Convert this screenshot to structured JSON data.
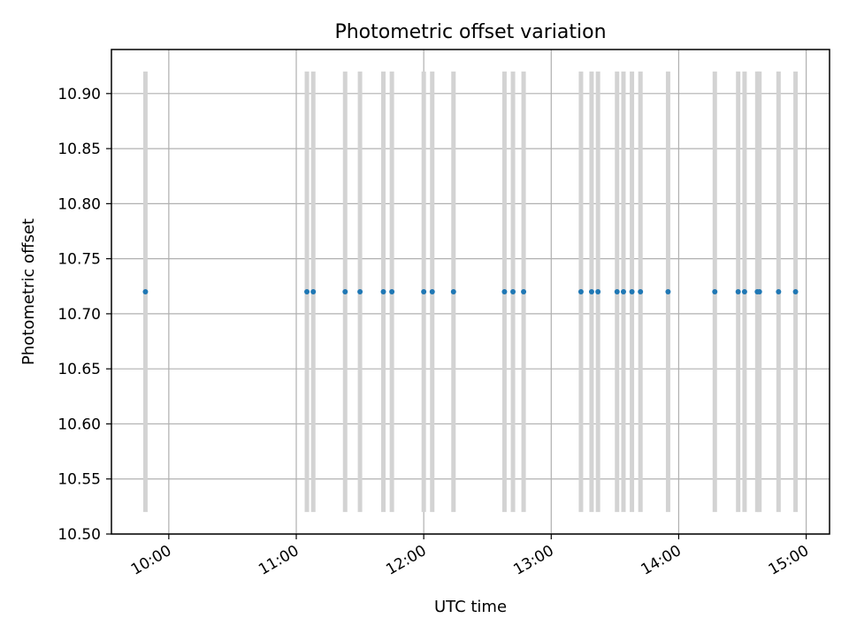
{
  "chart_data": {
    "type": "scatter",
    "title": "Photometric offset variation",
    "xlabel": "UTC time",
    "ylabel": "Photometric offset",
    "x_tick_labels": [
      "10:00",
      "11:00",
      "12:00",
      "13:00",
      "14:00",
      "15:00"
    ],
    "y_tick_labels": [
      "10.50",
      "10.55",
      "10.60",
      "10.65",
      "10.70",
      "10.75",
      "10.80",
      "10.85",
      "10.90"
    ],
    "xlim": [
      "09:33",
      "15:11"
    ],
    "ylim": [
      10.5,
      10.94
    ],
    "grid": true,
    "series": [
      {
        "values": [
          {
            "x": "09:49",
            "y": 10.72
          },
          {
            "x": "11:05",
            "y": 10.72
          },
          {
            "x": "11:08",
            "y": 10.72
          },
          {
            "x": "11:23",
            "y": 10.72
          },
          {
            "x": "11:30",
            "y": 10.72
          },
          {
            "x": "11:41",
            "y": 10.72
          },
          {
            "x": "11:45",
            "y": 10.72
          },
          {
            "x": "12:00",
            "y": 10.72
          },
          {
            "x": "12:04",
            "y": 10.72
          },
          {
            "x": "12:14",
            "y": 10.72
          },
          {
            "x": "12:38",
            "y": 10.72
          },
          {
            "x": "12:42",
            "y": 10.72
          },
          {
            "x": "12:47",
            "y": 10.72
          },
          {
            "x": "13:14",
            "y": 10.72
          },
          {
            "x": "13:19",
            "y": 10.72
          },
          {
            "x": "13:22",
            "y": 10.72
          },
          {
            "x": "13:31",
            "y": 10.72
          },
          {
            "x": "13:34",
            "y": 10.72
          },
          {
            "x": "13:38",
            "y": 10.72
          },
          {
            "x": "13:42",
            "y": 10.72
          },
          {
            "x": "13:55",
            "y": 10.72
          },
          {
            "x": "14:17",
            "y": 10.72
          },
          {
            "x": "14:28",
            "y": 10.72
          },
          {
            "x": "14:31",
            "y": 10.72
          },
          {
            "x": "14:37",
            "y": 10.72
          },
          {
            "x": "14:38",
            "y": 10.72
          },
          {
            "x": "14:47",
            "y": 10.72
          },
          {
            "x": "14:55",
            "y": 10.72
          }
        ],
        "color": "#1f77b4",
        "error_bar_color": "#d3d3d3",
        "error_bar_range": [
          10.52,
          10.92
        ]
      }
    ]
  }
}
